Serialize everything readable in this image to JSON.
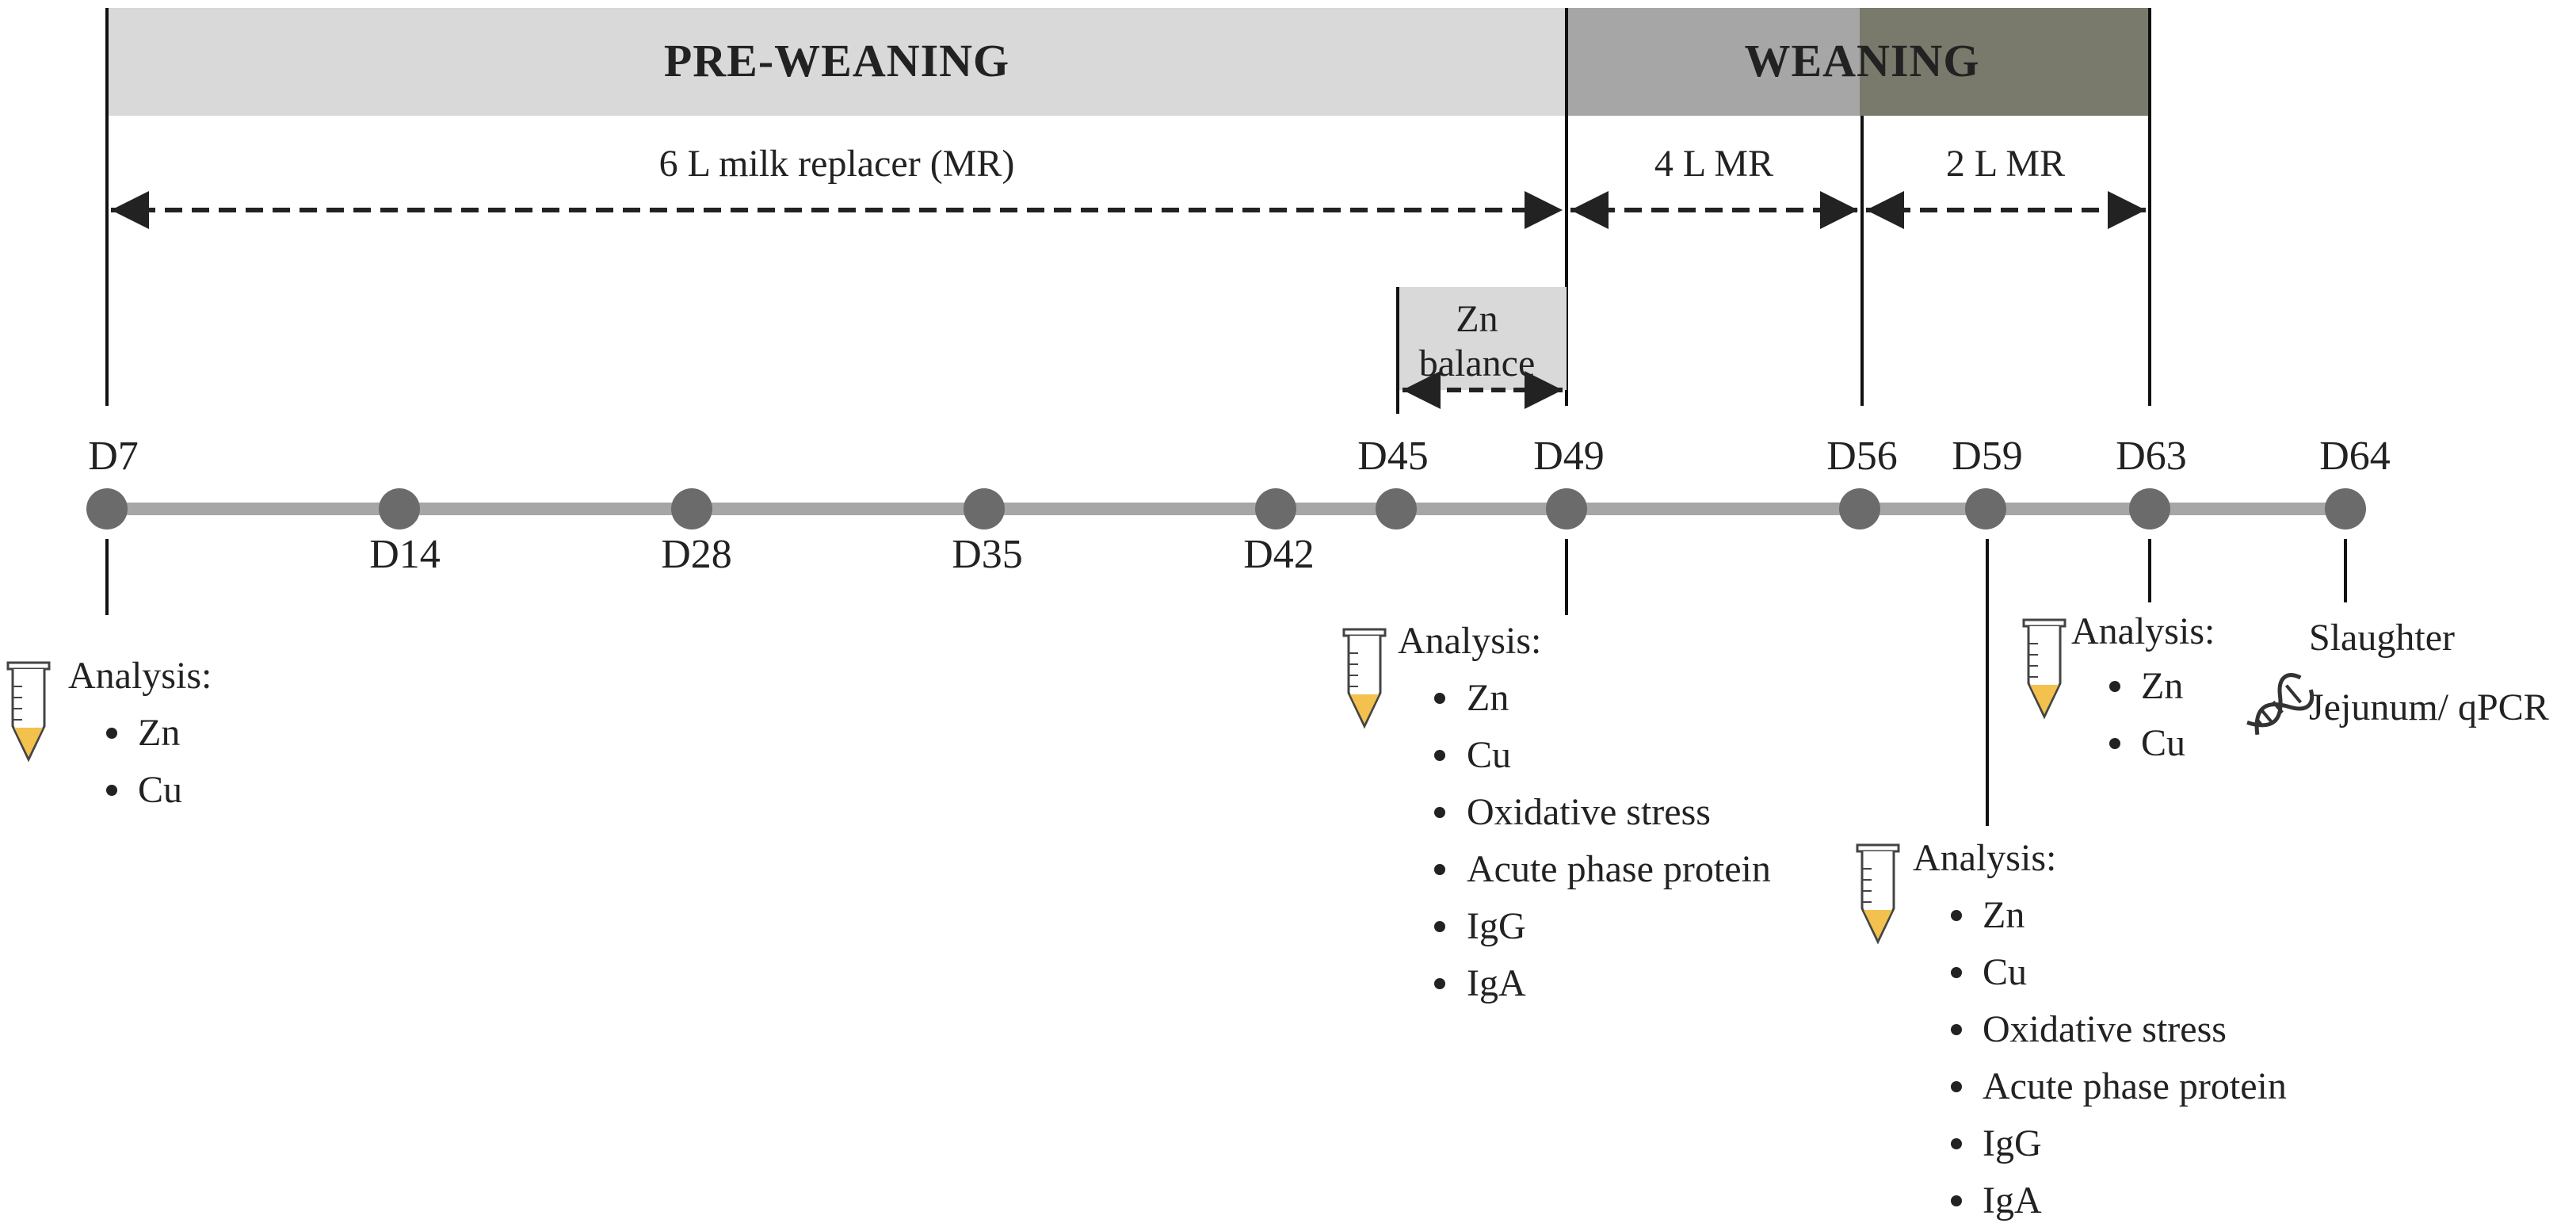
{
  "phases": {
    "pre_weaning": "PRE-WEANING",
    "weaning": "WEANING"
  },
  "feeding": {
    "mr_6l": "6 L milk replacer (MR)",
    "mr_4l": "4 L MR",
    "mr_2l": "2 L MR"
  },
  "zn_balance": {
    "line1": "Zn",
    "line2": "balance"
  },
  "timeline": {
    "days_above": [
      "D7",
      "D45",
      "D49",
      "D56",
      "D59",
      "D63",
      "D64"
    ],
    "days_below": [
      "D14",
      "D28",
      "D35",
      "D42"
    ]
  },
  "analyses": {
    "d7": {
      "title": "Analysis:",
      "items": [
        "Zn",
        "Cu"
      ]
    },
    "d49": {
      "title": "Analysis:",
      "items": [
        "Zn",
        "Cu",
        "Oxidative stress",
        "Acute phase protein",
        "IgG",
        "IgA"
      ]
    },
    "d59": {
      "title": "Analysis:",
      "items": [
        "Zn",
        "Cu",
        "Oxidative stress",
        "Acute phase protein",
        "IgG",
        "IgA"
      ]
    },
    "d63": {
      "title": "Analysis:",
      "items": [
        "Zn",
        "Cu"
      ]
    }
  },
  "slaughter": {
    "title": "Slaughter",
    "detail": "Jejunum/ qPCR"
  },
  "icons": {
    "tube": "sample-tube-icon",
    "dna": "dna-icon"
  },
  "colors": {
    "pre_weaning_bar": "#d9d9d9",
    "weaning_bar_a": "#a6a6a6",
    "weaning_bar_b": "#7a7a6c",
    "timeline": "#a6a6a6",
    "node": "#6b6b6b",
    "tube_fill": "#f2c14e"
  }
}
